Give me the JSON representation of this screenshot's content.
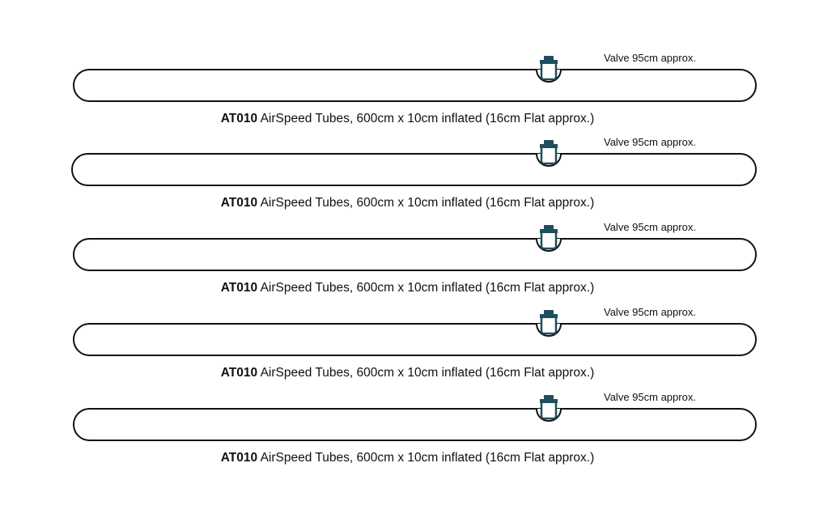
{
  "tubes": [
    {
      "valve_label": "Valve 95cm approx.",
      "code": "AT010",
      "description": "AirSpeed Tubes, 600cm x 10cm inflated (16cm Flat approx.)"
    },
    {
      "valve_label": "Valve 95cm approx.",
      "code": "AT010",
      "description": "AirSpeed Tubes, 600cm x 10cm inflated (16cm Flat approx.)"
    },
    {
      "valve_label": "Valve 95cm approx.",
      "code": "AT010",
      "description": "AirSpeed Tubes, 600cm x 10cm inflated (16cm Flat approx.)"
    },
    {
      "valve_label": "Valve 95cm approx.",
      "code": "AT010",
      "description": "AirSpeed Tubes, 600cm x 10cm inflated (16cm Flat approx.)"
    },
    {
      "valve_label": "Valve 95cm approx.",
      "code": "AT010",
      "description": "AirSpeed Tubes, 600cm x 10cm inflated (16cm Flat approx.)"
    }
  ],
  "colors": {
    "outline": "#111111",
    "valve_cap": "#1f4e5f"
  }
}
